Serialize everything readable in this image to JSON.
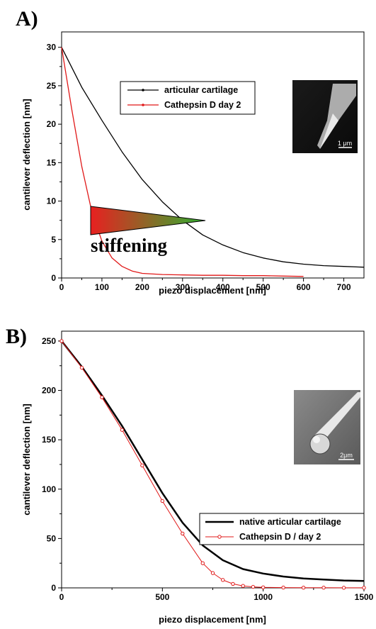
{
  "chart_data": [
    {
      "type": "line",
      "panel_label": "A)",
      "xlabel": "piezo displacement [nm]",
      "ylabel": "cantilever deflection [nm]",
      "xlim": [
        0,
        750
      ],
      "ylim": [
        0,
        32
      ],
      "xticks": [
        0,
        100,
        200,
        300,
        400,
        500,
        600,
        700
      ],
      "yticks": [
        0,
        5,
        10,
        15,
        20,
        25,
        30
      ],
      "grid": false,
      "legend_position": "top-center",
      "series": [
        {
          "name": "articular cartilage",
          "color": "#000000",
          "x": [
            0,
            50,
            100,
            150,
            200,
            250,
            300,
            350,
            400,
            450,
            500,
            550,
            600,
            650,
            700,
            750
          ],
          "y": [
            30,
            24.8,
            20.5,
            16.4,
            12.8,
            9.9,
            7.5,
            5.6,
            4.3,
            3.3,
            2.6,
            2.1,
            1.8,
            1.6,
            1.5,
            1.4
          ]
        },
        {
          "name": "Cathepsin D  day 2",
          "color": "#e01818",
          "x": [
            0,
            25,
            50,
            75,
            100,
            125,
            150,
            175,
            200,
            250,
            300,
            350,
            400,
            450,
            500,
            550,
            600
          ],
          "y": [
            30,
            22,
            14.5,
            8.6,
            4.8,
            2.6,
            1.5,
            0.9,
            0.6,
            0.45,
            0.4,
            0.35,
            0.35,
            0.3,
            0.3,
            0.25,
            0.2
          ]
        }
      ],
      "annotation": {
        "text": "stiffening",
        "gradient_colors": [
          "#e82020",
          "#30b030"
        ]
      },
      "inset_image": {
        "description": "SEM image of sharp cantilever tip",
        "scale_bar": "1 μm"
      }
    },
    {
      "type": "line",
      "panel_label": "B)",
      "xlabel": "piezo displacement [nm]",
      "ylabel": "cantilever deflection [nm]",
      "xlim": [
        0,
        1500
      ],
      "ylim": [
        0,
        260
      ],
      "xticks": [
        0,
        500,
        1000,
        1500
      ],
      "yticks": [
        0,
        50,
        100,
        150,
        200,
        250
      ],
      "grid": false,
      "legend_position": "bottom-right",
      "series": [
        {
          "name": "native articular cartilage",
          "color": "#000000",
          "x": [
            0,
            100,
            200,
            300,
            400,
            500,
            600,
            700,
            800,
            900,
            1000,
            1100,
            1200,
            1300,
            1400,
            1500
          ],
          "y": [
            250,
            224,
            195,
            164,
            130,
            96,
            66,
            43,
            28,
            19,
            14.5,
            11.5,
            9.5,
            8.5,
            7.5,
            7
          ]
        },
        {
          "name": "Cathepsin D / day 2",
          "color": "#e01818",
          "x": [
            0,
            100,
            200,
            300,
            400,
            500,
            600,
            700,
            750,
            800,
            850,
            900,
            950,
            1000,
            1100,
            1200,
            1300,
            1400,
            1500
          ],
          "y": [
            250,
            223,
            193,
            160,
            124,
            88,
            55,
            25,
            15,
            8,
            4,
            2,
            1,
            0.5,
            0.3,
            0.2,
            0.2,
            0.1,
            0.1
          ]
        }
      ],
      "inset_image": {
        "description": "SEM image of cantilever with spherical bead tip",
        "scale_bar": "2μm"
      }
    }
  ]
}
